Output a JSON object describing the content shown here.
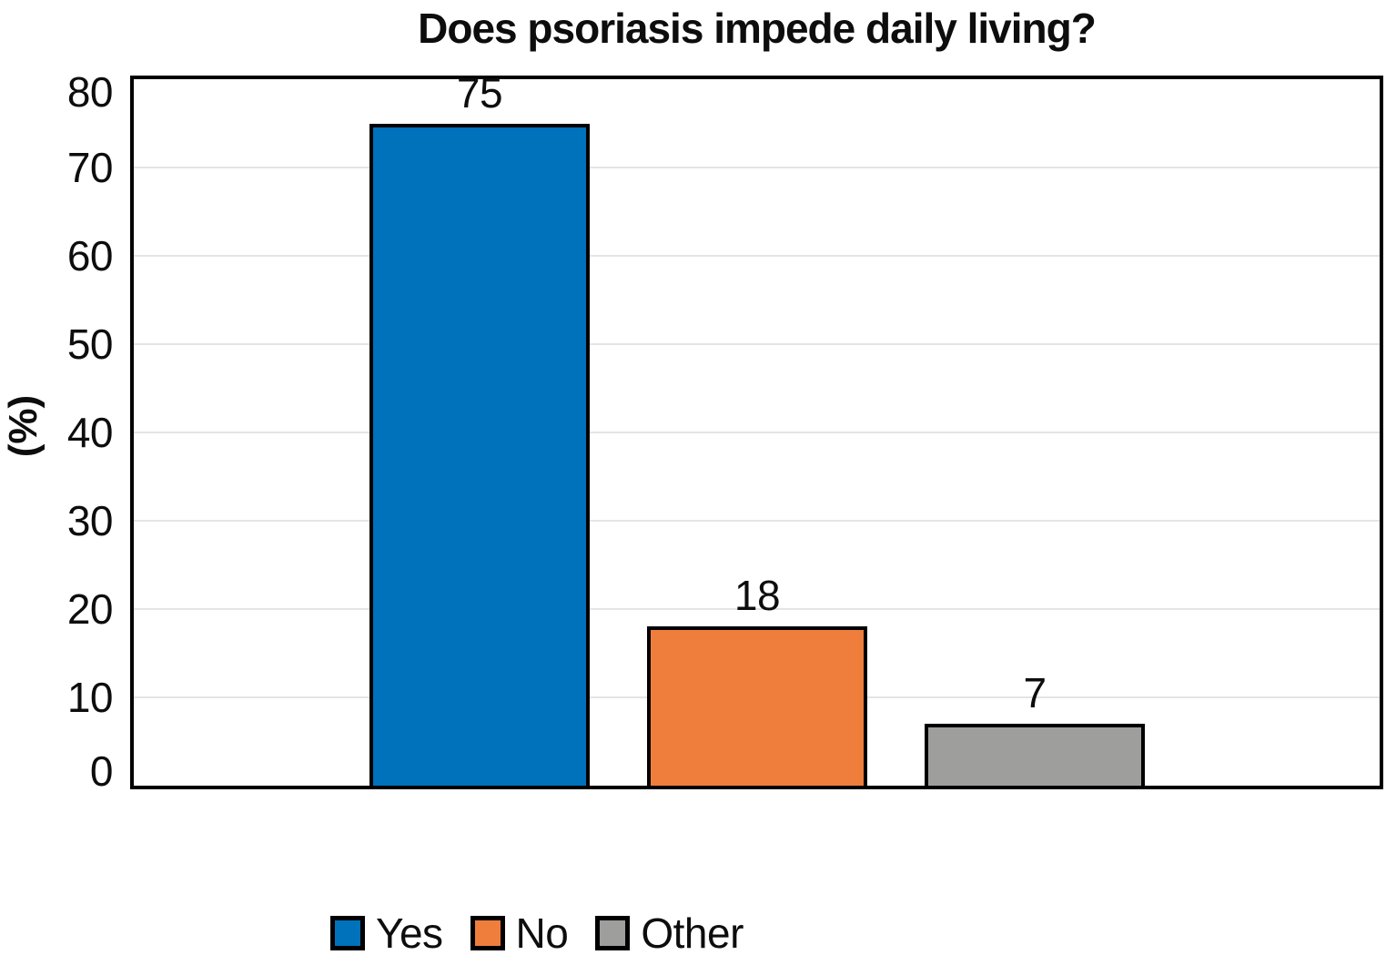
{
  "chart_data": {
    "type": "bar",
    "title": "Does psoriasis impede daily living?",
    "ylabel": "(%)",
    "xlabel": "",
    "categories": [
      "Yes",
      "No",
      "Other"
    ],
    "values": [
      75,
      18,
      7
    ],
    "bar_colors": [
      "#0071bb",
      "#ef7e3c",
      "#9e9e9c"
    ],
    "ylim": [
      0,
      80
    ],
    "yticks": [
      80,
      70,
      60,
      50,
      40,
      30,
      20,
      10,
      0
    ],
    "grid": true,
    "grid_color": "#e4e4e4",
    "axis_color": "#000000",
    "legend_position": "bottom",
    "legend": [
      {
        "label": "Yes",
        "color": "#0071bb"
      },
      {
        "label": "No",
        "color": "#ef7e3c"
      },
      {
        "label": "Other",
        "color": "#9e9e9c"
      }
    ]
  }
}
